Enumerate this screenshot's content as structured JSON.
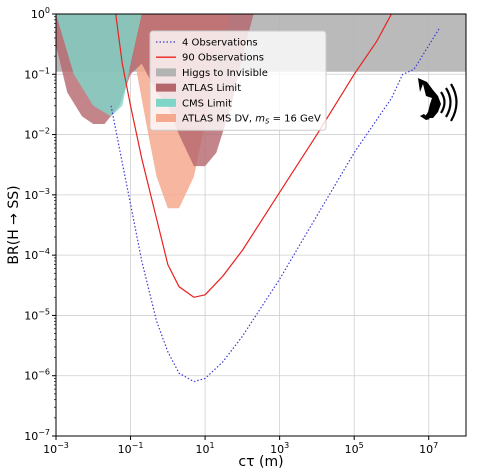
{
  "chart_data": {
    "type": "line",
    "xlabel": "cτ (m)",
    "ylabel": "BR(H → SS)",
    "xscale": "log",
    "yscale": "log",
    "xlim": [
      0.001,
      100000000
    ],
    "ylim": [
      1e-07,
      1
    ],
    "grid": true,
    "legend_position": "top-center",
    "x_ticks": [
      {
        "value": 0.001,
        "base": "10",
        "exp": "−3"
      },
      {
        "value": 0.1,
        "base": "10",
        "exp": "−1"
      },
      {
        "value": 10,
        "base": "10",
        "exp": "1"
      },
      {
        "value": 1000,
        "base": "10",
        "exp": "3"
      },
      {
        "value": 100000,
        "base": "10",
        "exp": "5"
      },
      {
        "value": 10000000,
        "base": "10",
        "exp": "7"
      }
    ],
    "y_ticks": [
      {
        "value": 1,
        "base": "10",
        "exp": "0"
      },
      {
        "value": 0.1,
        "base": "10",
        "exp": "−1"
      },
      {
        "value": 0.01,
        "base": "10",
        "exp": "−2"
      },
      {
        "value": 0.001,
        "base": "10",
        "exp": "−3"
      },
      {
        "value": 0.0001,
        "base": "10",
        "exp": "−4"
      },
      {
        "value": 1e-05,
        "base": "10",
        "exp": "−5"
      },
      {
        "value": 1e-06,
        "base": "10",
        "exp": "−6"
      },
      {
        "value": 1e-07,
        "base": "10",
        "exp": "−7"
      }
    ],
    "series": [
      {
        "name": "4 Observations",
        "kind": "line",
        "style": "dotted",
        "color": "#3a3ad6",
        "x": [
          0.03,
          0.05,
          0.1,
          0.2,
          0.5,
          1,
          2,
          5,
          10,
          30,
          100,
          1000,
          10000,
          100000,
          1000000,
          2000000,
          4000000,
          10000000,
          20000000
        ],
        "y": [
          0.03,
          0.006,
          0.0007,
          8e-05,
          8e-06,
          2.5e-06,
          1.1e-06,
          8e-07,
          9e-07,
          1.7e-06,
          4.5e-06,
          4e-05,
          0.00045,
          0.005,
          0.04,
          0.1,
          0.12,
          0.3,
          0.6
        ]
      },
      {
        "name": "90 Observations",
        "kind": "line",
        "style": "solid",
        "color": "#e8231f",
        "x": [
          0.04,
          0.06,
          0.1,
          0.2,
          0.5,
          1,
          2,
          5,
          10,
          30,
          100,
          1000,
          10000,
          100000,
          400000,
          1000000
        ],
        "y": [
          1,
          0.15,
          0.03,
          0.004,
          0.0004,
          7e-05,
          3e-05,
          2e-05,
          2.2e-05,
          4.5e-05,
          0.00012,
          0.0011,
          0.01,
          0.1,
          0.35,
          1
        ]
      },
      {
        "name": "Higgs to Invisible",
        "kind": "band",
        "color": "#b3b3b3",
        "x": [
          0.001,
          100000000
        ],
        "y_low": [
          0.11,
          0.11
        ],
        "y_high": [
          1,
          1
        ]
      },
      {
        "name": "ATLAS Limit",
        "kind": "region",
        "color": "#b5666d",
        "x": [
          0.001,
          0.002,
          0.005,
          0.01,
          0.02,
          0.05,
          0.1,
          0.2,
          0.5,
          1,
          2,
          5,
          10,
          20,
          50,
          100,
          200
        ],
        "y": [
          0.3,
          0.05,
          0.02,
          0.015,
          0.015,
          0.03,
          0.1,
          0.15,
          0.05,
          0.03,
          0.01,
          0.003,
          0.003,
          0.005,
          0.03,
          0.2,
          1
        ]
      },
      {
        "name": "CMS Limit",
        "kind": "region",
        "color": "#7fd6c8",
        "x": [
          0.001,
          0.003,
          0.01,
          0.03,
          0.06,
          0.1,
          0.2
        ],
        "y": [
          1,
          0.1,
          0.03,
          0.02,
          0.03,
          0.15,
          1
        ]
      },
      {
        "name": "ATLAS MS DV, m_S = 16 GeV",
        "kind": "region",
        "color": "#f5a98f",
        "x": [
          0.1,
          0.15,
          0.3,
          0.5,
          1,
          2,
          5,
          10,
          20,
          50
        ],
        "y": [
          1,
          0.1,
          0.01,
          0.002,
          0.0006,
          0.0006,
          0.002,
          0.015,
          0.2,
          1
        ]
      }
    ],
    "legend": [
      {
        "label": "4 Observations",
        "swatch": "dotted-line",
        "color": "#3a3ad6"
      },
      {
        "label": "90 Observations",
        "swatch": "line",
        "color": "#e8231f"
      },
      {
        "label": "Higgs to Invisible",
        "swatch": "patch",
        "color": "#b3b3b3"
      },
      {
        "label": "ATLAS Limit",
        "swatch": "patch",
        "color": "#b5666d"
      },
      {
        "label": "CMS Limit",
        "swatch": "patch",
        "color": "#7fd6c8"
      },
      {
        "label": "ATLAS MS DV, m_S = 16 GeV",
        "swatch": "patch",
        "color": "#f5a98f",
        "text": "ATLAS MS DV, ",
        "math_var": "m",
        "math_sub": "S",
        "math_rest": " = 16 GeV"
      }
    ],
    "logo": "jackal-head-with-waves-icon"
  }
}
